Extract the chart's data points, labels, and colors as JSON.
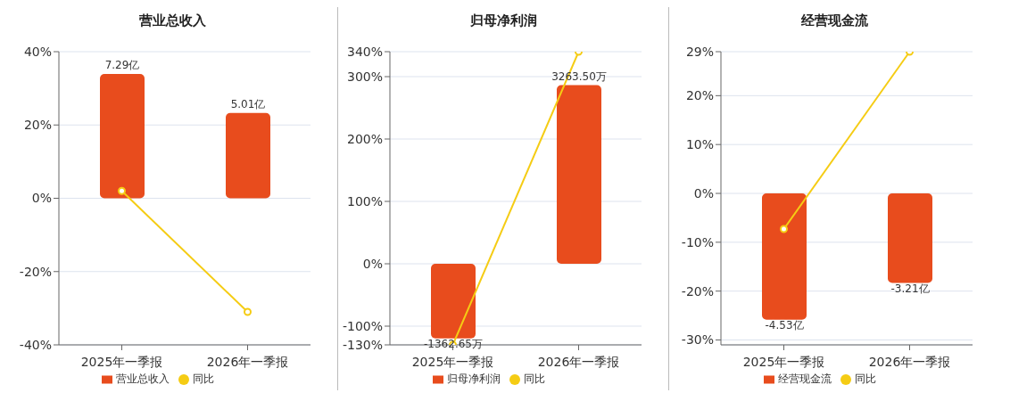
{
  "chart_data": [
    {
      "type": "bar",
      "title": "营业总收入",
      "categories": [
        "2025年一季报",
        "2026年一季报"
      ],
      "series": [
        {
          "name": "营业总收入",
          "axis": "y2",
          "color": "#e84c1d",
          "values": [
            7.29,
            5.01
          ],
          "value_labels": [
            "7.29亿",
            "5.01亿"
          ]
        },
        {
          "name": "同比",
          "type": "line",
          "color": "#f5cc14",
          "values": [
            2,
            -31
          ]
        }
      ],
      "ylim": [
        -40,
        40
      ],
      "yticks": [
        {
          "value": -40,
          "label": "-40%"
        },
        {
          "value": -20,
          "label": "-20%"
        },
        {
          "value": 0,
          "label": "0%"
        },
        {
          "value": 20,
          "label": "20%"
        },
        {
          "value": 40,
          "label": "40%"
        }
      ],
      "y2lim": [
        -8.6,
        8.6
      ],
      "grid": "y",
      "legend": "bottom",
      "marker": "circle"
    },
    {
      "type": "bar",
      "title": "归母净利润",
      "categories": [
        "2025年一季报",
        "2026年一季报"
      ],
      "series": [
        {
          "name": "归母净利润",
          "axis": "y2",
          "color": "#e84c1d",
          "values": [
            -1362.65,
            3263.5
          ],
          "value_labels": [
            "-1362.65万",
            "3263.50万"
          ]
        },
        {
          "name": "同比",
          "type": "line",
          "color": "#f5cc14",
          "values": [
            -130,
            340
          ]
        }
      ],
      "ylim": [
        -130,
        340
      ],
      "yticks": [
        {
          "value": -130,
          "label": "-130%"
        },
        {
          "value": -100,
          "label": "-100%"
        },
        {
          "value": 0,
          "label": "0%"
        },
        {
          "value": 100,
          "label": "100%"
        },
        {
          "value": 200,
          "label": "200%"
        },
        {
          "value": 300,
          "label": "300%"
        },
        {
          "value": 340,
          "label": "340%"
        }
      ],
      "y2lim": [
        -1482,
        3876
      ],
      "grid": "y",
      "legend": "bottom",
      "marker": "circle"
    },
    {
      "type": "bar",
      "title": "经营现金流",
      "categories": [
        "2025年一季报",
        "2026年一季报"
      ],
      "series": [
        {
          "name": "经营现金流",
          "axis": "y2",
          "color": "#e84c1d",
          "values": [
            -4.53,
            -3.21
          ],
          "value_labels": [
            "-4.53亿",
            "-3.21亿"
          ]
        },
        {
          "name": "同比",
          "type": "line",
          "color": "#f5cc14",
          "values": [
            -7.3,
            29
          ]
        }
      ],
      "ylim": [
        -31,
        29
      ],
      "yticks": [
        {
          "value": -30,
          "label": "-30%"
        },
        {
          "value": -20,
          "label": "-20%"
        },
        {
          "value": -10,
          "label": "-10%"
        },
        {
          "value": 0,
          "label": "0%"
        },
        {
          "value": 10,
          "label": "10%"
        },
        {
          "value": 20,
          "label": "20%"
        },
        {
          "value": 29,
          "label": "29%"
        }
      ],
      "y2lim": [
        -5.43,
        5.08
      ],
      "grid": "y",
      "legend": "bottom",
      "marker": "circle"
    }
  ]
}
